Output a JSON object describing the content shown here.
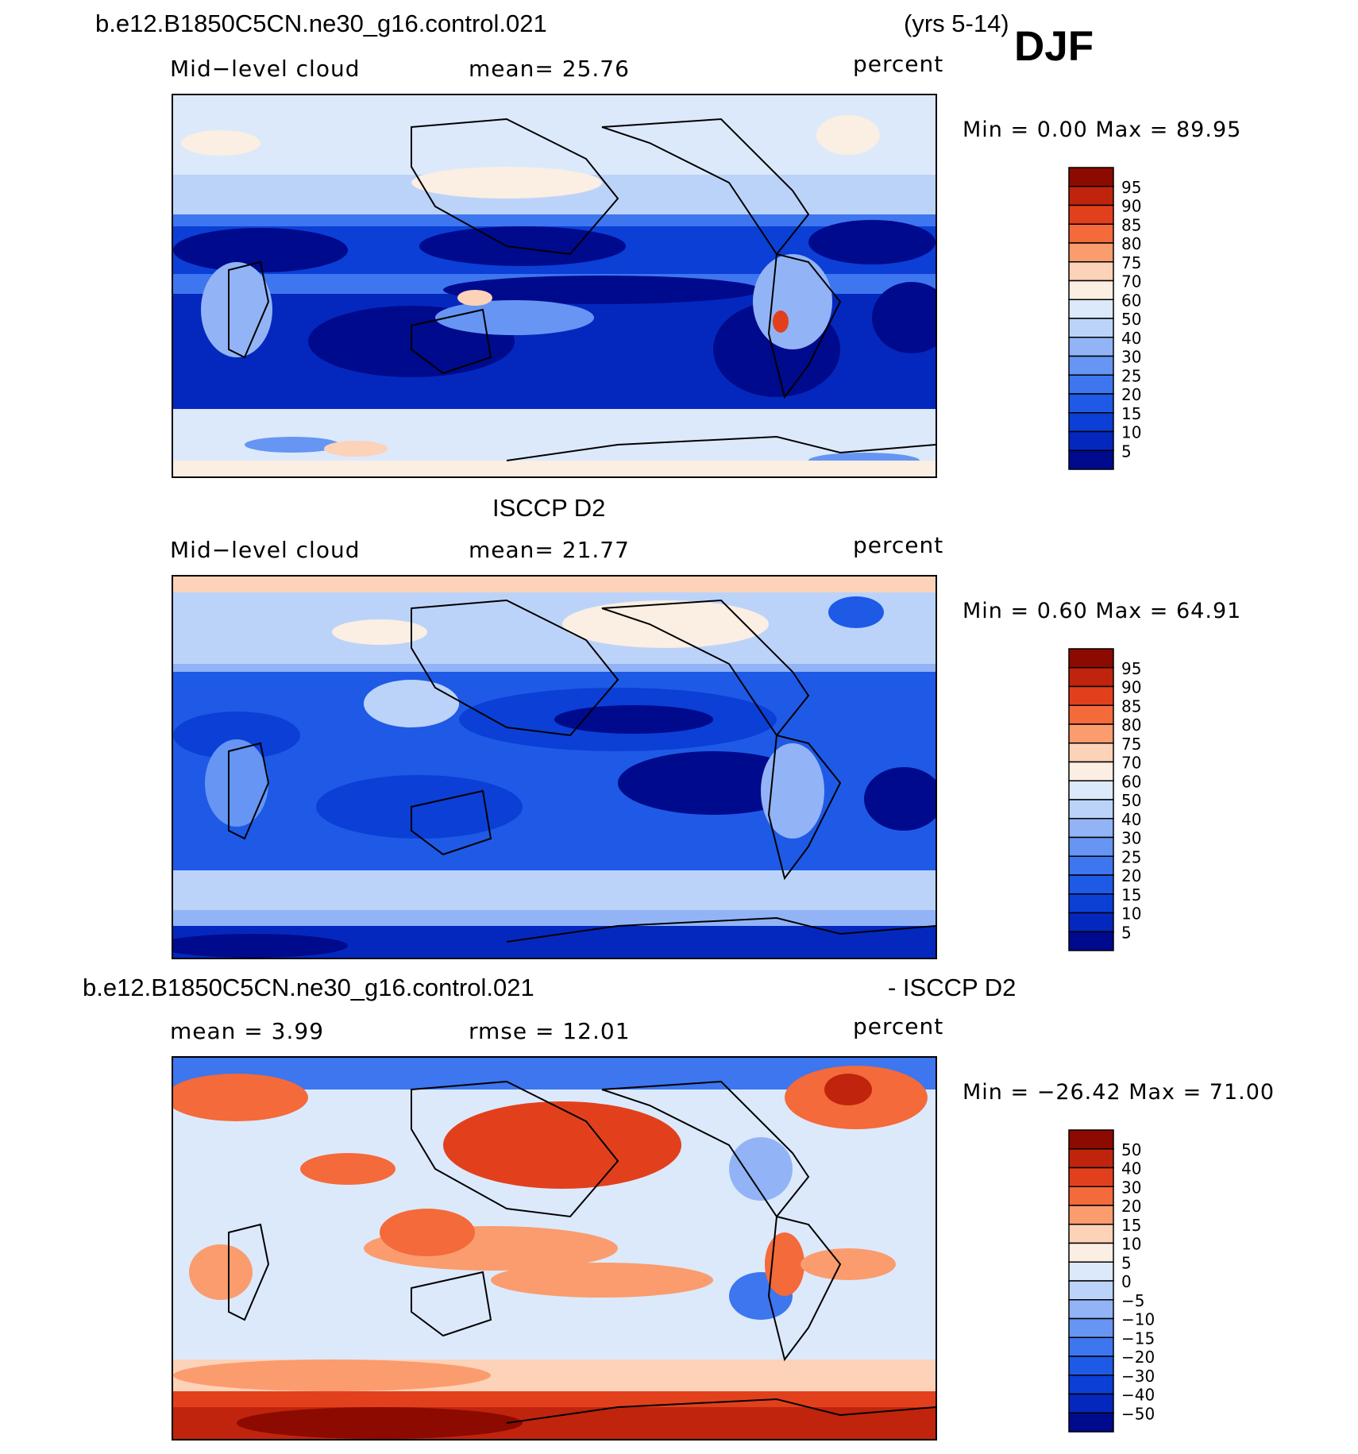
{
  "header": {
    "case_name": "b.e12.B1850C5CN.ne30_g16.control.021",
    "years": "(yrs 5-14)",
    "season": "DJF"
  },
  "panels": [
    {
      "id": "model",
      "title": "",
      "left_label": "Mid−level cloud",
      "center_label": "mean=   25.76",
      "units": "percent",
      "minmax": "Min =     0.00 Max =   89.95",
      "colorbar_labels": [
        "95",
        "90",
        "85",
        "80",
        "75",
        "70",
        "60",
        "50",
        "40",
        "30",
        "25",
        "20",
        "15",
        "10",
        "5"
      ]
    },
    {
      "id": "obs",
      "title": "ISCCP D2",
      "left_label": "Mid−level cloud",
      "center_label": "mean=   21.77",
      "units": "percent",
      "minmax": "Min =     0.60 Max =   64.91",
      "colorbar_labels": [
        "95",
        "90",
        "85",
        "80",
        "75",
        "70",
        "60",
        "50",
        "40",
        "30",
        "25",
        "20",
        "15",
        "10",
        "5"
      ]
    },
    {
      "id": "diff",
      "title_left": "b.e12.B1850C5CN.ne30_g16.control.021",
      "title_right": "- ISCCP D2",
      "left_label": "mean =     3.99",
      "center_label": "rmse =    12.01",
      "units": "percent",
      "minmax": "Min = −26.42 Max =   71.00",
      "colorbar_labels": [
        "50",
        "40",
        "30",
        "20",
        "15",
        "10",
        "5",
        "0",
        "−5",
        "−10",
        "−15",
        "−20",
        "−30",
        "−40",
        "−50"
      ]
    }
  ],
  "colors": {
    "scale": [
      "#000a8c",
      "#0428be",
      "#0b3fd6",
      "#1e5ae6",
      "#3d76ef",
      "#6695f3",
      "#92b4f6",
      "#bcd3f9",
      "#dce9fb",
      "#fbeee2",
      "#fcd2b8",
      "#fb9c6e",
      "#f46a3a",
      "#e2401d",
      "#c0240c",
      "#8c0a00"
    ]
  }
}
